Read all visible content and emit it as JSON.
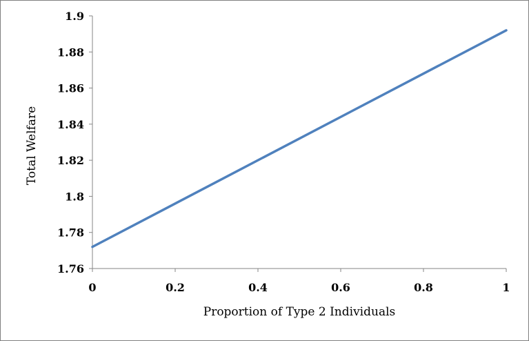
{
  "chart_data": {
    "type": "line",
    "title": "",
    "xlabel": "Proportion of Type 2 Individuals",
    "ylabel": "Total Welfare",
    "xlim": [
      0,
      1
    ],
    "ylim": [
      1.76,
      1.9
    ],
    "x_ticks": [
      0,
      0.2,
      0.4,
      0.6,
      0.8,
      1
    ],
    "x_tick_labels": [
      "0",
      "0.2",
      "0.4",
      "0.6",
      "0.8",
      "1"
    ],
    "y_ticks": [
      1.76,
      1.78,
      1.8,
      1.82,
      1.84,
      1.86,
      1.88,
      1.9
    ],
    "y_tick_labels": [
      "1.76",
      "1.78",
      "1.8",
      "1.82",
      "1.84",
      "1.86",
      "1.88",
      "1.9"
    ],
    "grid": false,
    "legend": "none",
    "series": [
      {
        "x": [
          0,
          1
        ],
        "y": [
          1.772,
          1.892
        ]
      }
    ],
    "colors": {
      "line": "#4f81bd",
      "axis": "#868686"
    }
  }
}
